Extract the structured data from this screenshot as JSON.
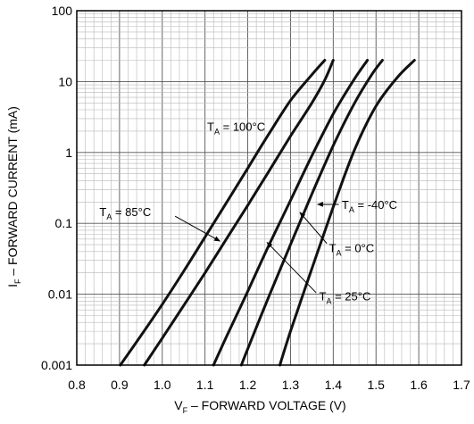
{
  "chart_data": {
    "type": "line",
    "xlabel": {
      "main": "V",
      "sub": "F",
      "rest": " – FORWARD VOLTAGE (V)"
    },
    "ylabel": {
      "main": "I",
      "sub": "F",
      "rest": " – FORWARD CURRENT (mA)"
    },
    "x_scale": "linear",
    "y_scale": "log",
    "xlim": [
      0.8,
      1.7
    ],
    "ylim": [
      0.001,
      100
    ],
    "x_ticks": [
      "0.8",
      "0.9",
      "1.0",
      "1.1",
      "1.2",
      "1.3",
      "1.4",
      "1.5",
      "1.6",
      "1.7"
    ],
    "y_ticks": [
      "0.001",
      "0.01",
      "0.1",
      "1",
      "10",
      "100"
    ],
    "grid": true,
    "series": [
      {
        "name": "T_A = 100°C",
        "x": [
          0.902,
          0.95,
          1.0,
          1.05,
          1.1,
          1.15,
          1.2,
          1.25,
          1.3,
          1.35,
          1.38
        ],
        "y": [
          0.001,
          0.0026,
          0.0072,
          0.021,
          0.064,
          0.195,
          0.6,
          1.85,
          5.4,
          12.5,
          20
        ]
      },
      {
        "name": "T_A = 85°C",
        "x": [
          0.958,
          1.0,
          1.05,
          1.1,
          1.15,
          1.2,
          1.25,
          1.3,
          1.35,
          1.38,
          1.4
        ],
        "y": [
          0.001,
          0.0024,
          0.0069,
          0.02,
          0.06,
          0.18,
          0.55,
          1.7,
          5.0,
          10.5,
          20
        ]
      },
      {
        "name": "T_A = 25°C",
        "x": [
          1.12,
          1.15,
          1.2,
          1.25,
          1.3,
          1.35,
          1.4,
          1.45,
          1.48
        ],
        "y": [
          0.001,
          0.0025,
          0.011,
          0.05,
          0.21,
          0.9,
          3.5,
          11,
          20
        ]
      },
      {
        "name": "T_A = 0°C",
        "x": [
          1.185,
          1.2,
          1.25,
          1.3,
          1.35,
          1.4,
          1.45,
          1.49,
          1.515
        ],
        "y": [
          0.001,
          0.0017,
          0.0095,
          0.05,
          0.26,
          1.25,
          5.0,
          12.5,
          20
        ]
      },
      {
        "name": "T_A = -40°C",
        "x": [
          1.275,
          1.3,
          1.35,
          1.4,
          1.45,
          1.5,
          1.55,
          1.59
        ],
        "y": [
          0.001,
          0.003,
          0.023,
          0.17,
          1.1,
          4.5,
          11.5,
          20
        ]
      }
    ],
    "annotations": [
      {
        "main": "T",
        "sub": "A",
        "rest": " = 100°C"
      },
      {
        "main": "T",
        "sub": "A",
        "rest": " = 85°C"
      },
      {
        "main": "T",
        "sub": "A",
        "rest": " = -40°C"
      },
      {
        "main": "T",
        "sub": "A",
        "rest": " = 0°C"
      },
      {
        "main": "T",
        "sub": "A",
        "rest": " = 25°C"
      }
    ]
  }
}
